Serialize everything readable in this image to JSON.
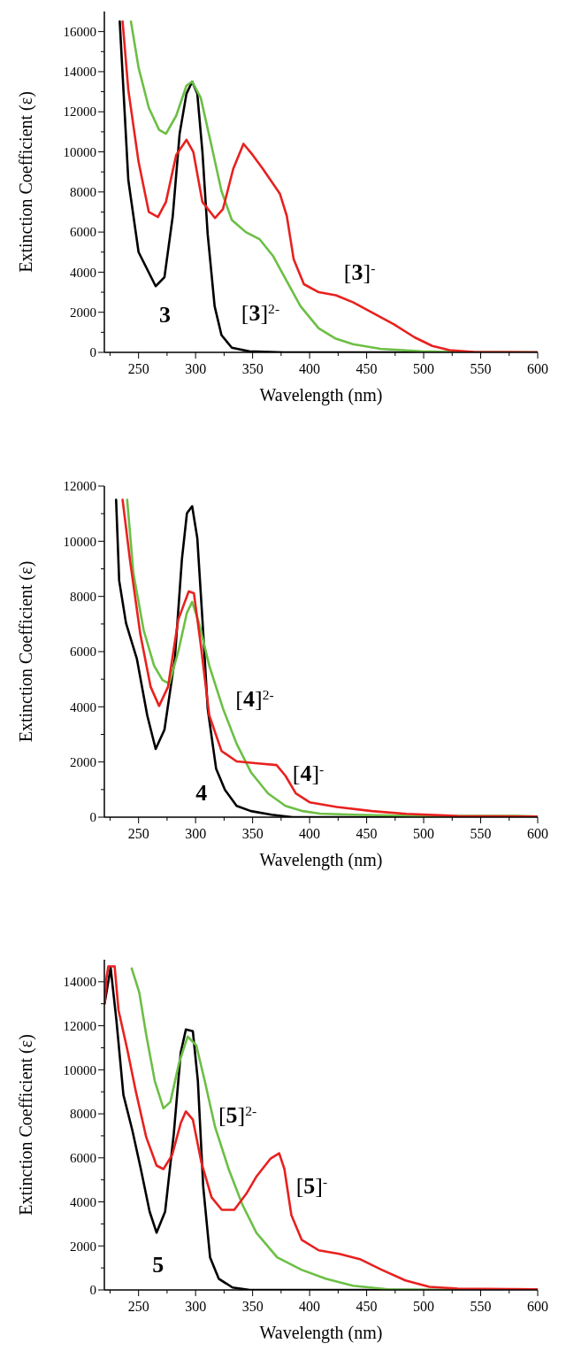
{
  "chart_data": [
    {
      "type": "line",
      "xlabel": "Wavelength (nm)",
      "ylabel": "Extinction Coefficient (ε)",
      "xlim": [
        220,
        600
      ],
      "ylim": [
        0,
        17000
      ],
      "xticks": [
        {
          "value": 225,
          "label": null
        },
        250,
        {
          "value": 275,
          "label": null
        },
        300,
        {
          "value": 325,
          "label": null
        },
        350,
        {
          "value": 375,
          "label": null
        },
        400,
        {
          "value": 425,
          "label": null
        },
        450,
        {
          "value": 475,
          "label": null
        },
        500,
        {
          "value": 525,
          "label": null
        },
        550,
        {
          "value": 575,
          "label": null
        },
        600
      ],
      "yticks": [
        0,
        {
          "value": 1000,
          "label": null
        },
        2000,
        {
          "value": 3000,
          "label": null
        },
        4000,
        {
          "value": 5000,
          "label": null
        },
        6000,
        {
          "value": 7000,
          "label": null
        },
        8000,
        {
          "value": 9000,
          "label": null
        },
        10000,
        {
          "value": 11000,
          "label": null
        },
        12000,
        {
          "value": 13000,
          "label": null
        },
        14000,
        {
          "value": 15000,
          "label": null
        },
        16000
      ],
      "grid": false,
      "marker": "none",
      "line_style": "solid",
      "series": [
        {
          "name": "3",
          "color": "#000000",
          "x": [
            233.5,
            241,
            250,
            265,
            272.7,
            280,
            286,
            292,
            297,
            301.5,
            306,
            310.6,
            316.7,
            322.7,
            331.8,
            347,
            377,
            600
          ],
          "values": [
            16500,
            8600,
            5000,
            3300,
            3750,
            6800,
            10900,
            12900,
            13500,
            12900,
            10000,
            5900,
            2300,
            860,
            230,
            50,
            0,
            0
          ]
        },
        {
          "name": "[3]$^{2-}$",
          "color": "#6cbf45",
          "x": [
            243.3,
            250,
            259,
            268,
            274,
            283,
            292,
            297,
            304.5,
            313.6,
            322.7,
            331.8,
            344,
            356,
            368,
            380,
            392,
            408,
            423,
            438,
            462,
            498,
            544,
            600
          ],
          "values": [
            16500,
            14200,
            12200,
            11100,
            10900,
            11800,
            13300,
            13500,
            12700,
            10400,
            8050,
            6600,
            6000,
            5650,
            4800,
            3550,
            2300,
            1200,
            680,
            410,
            180,
            50,
            0,
            0
          ]
        },
        {
          "name": "[3]$^{-}$",
          "color": "#e8211f",
          "x": [
            236,
            241,
            250,
            259,
            267,
            274,
            283,
            292,
            298,
            306,
            317,
            324,
            333,
            342,
            350,
            359,
            374,
            380,
            386,
            395,
            408,
            423,
            438,
            456,
            474,
            492,
            507.6,
            522.7,
            544,
            600
          ],
          "values": [
            16500,
            13100,
            9500,
            7000,
            6750,
            7500,
            9850,
            10600,
            10000,
            7500,
            6700,
            7150,
            9150,
            10400,
            9850,
            9150,
            7900,
            6800,
            4650,
            3400,
            3000,
            2850,
            2500,
            1950,
            1400,
            750,
            320,
            110,
            20,
            0
          ]
        }
      ]
    },
    {
      "type": "line",
      "xlabel": "Wavelength (nm)",
      "ylabel": "Extinction Coefficient (ε)",
      "xlim": [
        220,
        600
      ],
      "ylim": [
        0,
        12000
      ],
      "xticks": [
        {
          "value": 225,
          "label": null
        },
        250,
        {
          "value": 275,
          "label": null
        },
        300,
        {
          "value": 325,
          "label": null
        },
        350,
        {
          "value": 375,
          "label": null
        },
        400,
        {
          "value": 425,
          "label": null
        },
        450,
        {
          "value": 475,
          "label": null
        },
        500,
        {
          "value": 525,
          "label": null
        },
        550,
        {
          "value": 575,
          "label": null
        },
        600
      ],
      "yticks": [
        0,
        {
          "value": 1000,
          "label": null
        },
        2000,
        {
          "value": 3000,
          "label": null
        },
        4000,
        {
          "value": 5000,
          "label": null
        },
        6000,
        {
          "value": 7000,
          "label": null
        },
        8000,
        {
          "value": 9000,
          "label": null
        },
        10000,
        {
          "value": 11000,
          "label": null
        },
        12000
      ],
      "grid": false,
      "marker": "none",
      "line_style": "solid",
      "series": [
        {
          "name": "4",
          "color": "#000000",
          "x": [
            230.3,
            233,
            239,
            248.5,
            257.6,
            265,
            272.7,
            281.8,
            288,
            292.4,
            297,
            301.5,
            306,
            310.6,
            318,
            325.8,
            336,
            348.5,
            366.7,
            385,
            600
          ],
          "values": [
            11500,
            8570,
            7030,
            5740,
            3690,
            2470,
            3170,
            5740,
            9340,
            11010,
            11270,
            10110,
            7160,
            3940,
            1760,
            990,
            410,
            220,
            90,
            0,
            0
          ]
        },
        {
          "name": "[4]$^{2-}$",
          "color": "#6cbf45",
          "x": [
            240,
            245.5,
            254.5,
            263.6,
            271,
            277,
            284.8,
            292.4,
            297,
            303,
            312,
            324,
            336,
            348.5,
            363.6,
            378.8,
            394,
            409,
            439,
            500,
            582,
            600
          ],
          "values": [
            11500,
            8830,
            6770,
            5490,
            4970,
            4840,
            6000,
            7410,
            7800,
            7030,
            5490,
            3940,
            2660,
            1630,
            860,
            410,
            220,
            130,
            90,
            40,
            50,
            20
          ]
        },
        {
          "name": "[4]$^{-}$",
          "color": "#e8211f",
          "x": [
            236,
            242.4,
            251.5,
            260.6,
            268,
            275.8,
            284.8,
            294,
            298.5,
            304.5,
            312,
            322.7,
            336,
            354.5,
            371,
            378.8,
            387.9,
            400,
            424,
            454.5,
            484.8,
            530,
            600
          ],
          "values": [
            11500,
            9340,
            6640,
            4720,
            4030,
            4720,
            7160,
            8180,
            8120,
            6260,
            3690,
            2400,
            2020,
            1950,
            1890,
            1500,
            860,
            540,
            370,
            220,
            120,
            40,
            20
          ]
        }
      ]
    },
    {
      "type": "line",
      "xlabel": "Wavelength (nm)",
      "ylabel": "Extinction Coefficient (ε)",
      "xlim": [
        220,
        600
      ],
      "ylim": [
        0,
        15000
      ],
      "xticks": [
        {
          "value": 225,
          "label": null
        },
        250,
        {
          "value": 275,
          "label": null
        },
        300,
        {
          "value": 325,
          "label": null
        },
        350,
        {
          "value": 375,
          "label": null
        },
        400,
        {
          "value": 425,
          "label": null
        },
        450,
        {
          "value": 475,
          "label": null
        },
        500,
        {
          "value": 525,
          "label": null
        },
        550,
        {
          "value": 575,
          "label": null
        },
        600
      ],
      "yticks": [
        0,
        {
          "value": 1000,
          "label": null
        },
        2000,
        {
          "value": 3000,
          "label": null
        },
        4000,
        {
          "value": 5000,
          "label": null
        },
        6000,
        {
          "value": 7000,
          "label": null
        },
        8000,
        {
          "value": 9000,
          "label": null
        },
        10000,
        {
          "value": 11000,
          "label": null
        },
        12000,
        {
          "value": 13000,
          "label": null
        },
        14000
      ],
      "grid": false,
      "marker": "none",
      "line_style": "solid",
      "series": [
        {
          "name": "5",
          "color": "#000000",
          "x": [
            220.3,
            225.5,
            230.6,
            236.7,
            244.5,
            252,
            259.7,
            265.8,
            273.3,
            280.9,
            287,
            291.5,
            297.6,
            302,
            306.7,
            312.7,
            320.3,
            332.4,
            347.6,
            600
          ],
          "values": [
            13040,
            14640,
            12230,
            8860,
            7260,
            5490,
            3560,
            2600,
            3560,
            7100,
            10790,
            11830,
            11750,
            9500,
            4690,
            1480,
            510,
            110,
            0,
            0
          ]
        },
        {
          "name": "[5]$^{2-}$",
          "color": "#6cbf45",
          "x": [
            244,
            250.6,
            256.7,
            264.2,
            271.8,
            277.9,
            285.5,
            293,
            300.6,
            308,
            317,
            329,
            341,
            353.3,
            371.5,
            392.7,
            414,
            438,
            468.5,
            514,
            600
          ],
          "values": [
            14600,
            13520,
            11590,
            9500,
            8250,
            8540,
            10310,
            11510,
            11110,
            9500,
            7420,
            5490,
            3880,
            2600,
            1480,
            920,
            510,
            190,
            30,
            0,
            0
          ]
        },
        {
          "name": "[5]$^{-}$",
          "color": "#e8211f",
          "x": [
            220.3,
            221.8,
            223.5,
            229,
            232.4,
            240,
            247.6,
            256.7,
            265.8,
            271.8,
            279.4,
            287,
            291.5,
            297.6,
            305,
            314,
            323,
            333.9,
            344.5,
            353.6,
            365.8,
            373.3,
            377.9,
            384,
            393,
            408,
            426,
            444,
            463,
            484,
            505,
            530,
            600
          ],
          "values": [
            13000,
            14160,
            14700,
            14700,
            12710,
            10950,
            9020,
            6940,
            5650,
            5490,
            6130,
            7580,
            8110,
            7740,
            5810,
            4210,
            3640,
            3640,
            4370,
            5170,
            5970,
            6210,
            5490,
            3400,
            2280,
            1800,
            1640,
            1400,
            920,
            430,
            140,
            60,
            30
          ]
        }
      ]
    }
  ]
}
